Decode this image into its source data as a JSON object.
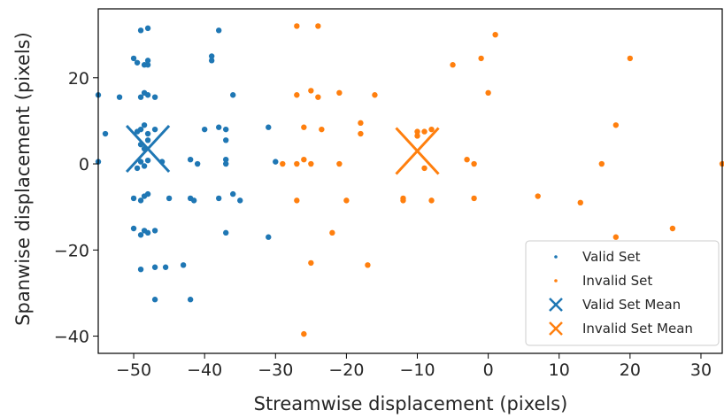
{
  "chart_data": {
    "type": "scatter",
    "xlabel": "Streamwise displacement (pixels)",
    "ylabel": "Spanwise displacement (pixels)",
    "xlim": [
      -55,
      33
    ],
    "ylim": [
      -44,
      36
    ],
    "xticks": [
      -50,
      -40,
      -30,
      -20,
      -10,
      0,
      10,
      20,
      30
    ],
    "yticks": [
      -40,
      -20,
      0,
      20
    ],
    "legend_position": "lower-right",
    "series": [
      {
        "name": "Valid Set",
        "marker": "point",
        "color": "#1f77b4",
        "points": [
          [
            -55,
            16
          ],
          [
            -54,
            7
          ],
          [
            -52,
            15.5
          ],
          [
            -50,
            24.5
          ],
          [
            -49.5,
            23.5
          ],
          [
            -48.5,
            23
          ],
          [
            -49,
            15.5
          ],
          [
            -48.5,
            16.5
          ],
          [
            -48,
            16
          ],
          [
            -49,
            8
          ],
          [
            -48.5,
            9
          ],
          [
            -48,
            7
          ],
          [
            -49.5,
            7.5
          ],
          [
            -48,
            5.5
          ],
          [
            -49,
            4.5
          ],
          [
            -48.5,
            3.5
          ],
          [
            -49,
            0.5
          ],
          [
            -48.5,
            -0.5
          ],
          [
            -48,
            0.8
          ],
          [
            -49.5,
            -1
          ],
          [
            -48.5,
            -7.5
          ],
          [
            -49,
            -8.5
          ],
          [
            -48,
            -7
          ],
          [
            -50,
            -8
          ],
          [
            -48.5,
            -15.5
          ],
          [
            -49,
            -16.5
          ],
          [
            -48,
            -16
          ],
          [
            -50,
            -15
          ],
          [
            -49,
            -24.5
          ],
          [
            -47,
            -24
          ],
          [
            -45.5,
            -24
          ],
          [
            -49,
            31
          ],
          [
            -48,
            31.5
          ],
          [
            -48,
            24
          ],
          [
            -48,
            23
          ],
          [
            -47,
            15.5
          ],
          [
            -47,
            8
          ],
          [
            -46,
            0.5
          ],
          [
            -47,
            -15.5
          ],
          [
            -47,
            -31.5
          ],
          [
            -55,
            0.5
          ],
          [
            -45,
            -8
          ],
          [
            -42,
            -8
          ],
          [
            -41.5,
            -8.5
          ],
          [
            -43,
            -23.5
          ],
          [
            -42,
            -31.5
          ],
          [
            -42,
            1
          ],
          [
            -41,
            0
          ],
          [
            -40,
            8
          ],
          [
            -38,
            8.5
          ],
          [
            -38,
            -8
          ],
          [
            -39,
            25
          ],
          [
            -39,
            24
          ],
          [
            -38,
            31
          ],
          [
            -37,
            5.5
          ],
          [
            -37,
            8
          ],
          [
            -37,
            1
          ],
          [
            -37,
            0
          ],
          [
            -36,
            -7
          ],
          [
            -37,
            -16
          ],
          [
            -36,
            16
          ],
          [
            -35,
            -8.5
          ],
          [
            -31,
            -17
          ],
          [
            -31,
            8.5
          ],
          [
            -30,
            0.5
          ]
        ]
      },
      {
        "name": "Invalid Set",
        "marker": "point",
        "color": "#ff7f0e",
        "points": [
          [
            -27,
            32
          ],
          [
            -24,
            32
          ],
          [
            -27,
            16
          ],
          [
            -25,
            17
          ],
          [
            -24,
            15.5
          ],
          [
            -21,
            16.5
          ],
          [
            -16,
            16
          ],
          [
            -26,
            8.5
          ],
          [
            -23.5,
            8
          ],
          [
            -18,
            9.5
          ],
          [
            -18,
            7
          ],
          [
            -26,
            1
          ],
          [
            -29,
            0
          ],
          [
            -27,
            0
          ],
          [
            -25,
            0
          ],
          [
            -21,
            0
          ],
          [
            -27,
            -8.5
          ],
          [
            -20,
            -8.5
          ],
          [
            -12,
            -8.5
          ],
          [
            -22,
            -16
          ],
          [
            -25,
            -23
          ],
          [
            -17,
            -23.5
          ],
          [
            -26,
            -39.5
          ],
          [
            -10,
            7.5
          ],
          [
            -9,
            7.5
          ],
          [
            -8,
            8
          ],
          [
            -10,
            6.5
          ],
          [
            -9,
            -1
          ],
          [
            -8,
            -8.5
          ],
          [
            -3,
            1
          ],
          [
            -2,
            0
          ],
          [
            -2,
            -8
          ],
          [
            -5,
            23
          ],
          [
            -1,
            24.5
          ],
          [
            1,
            30
          ],
          [
            0,
            16.5
          ],
          [
            7,
            -7.5
          ],
          [
            13,
            -9
          ],
          [
            16,
            0
          ],
          [
            18,
            9
          ],
          [
            18,
            -17
          ],
          [
            20,
            24.5
          ],
          [
            26,
            -15
          ],
          [
            33,
            0
          ],
          [
            -12,
            -8
          ]
        ]
      },
      {
        "name": "Valid Set Mean",
        "marker": "x",
        "color": "#1f77b4",
        "points": [
          [
            -48,
            3.5
          ]
        ]
      },
      {
        "name": "Invalid Set Mean",
        "marker": "x",
        "color": "#ff7f0e",
        "points": [
          [
            -10,
            3
          ]
        ]
      }
    ]
  }
}
